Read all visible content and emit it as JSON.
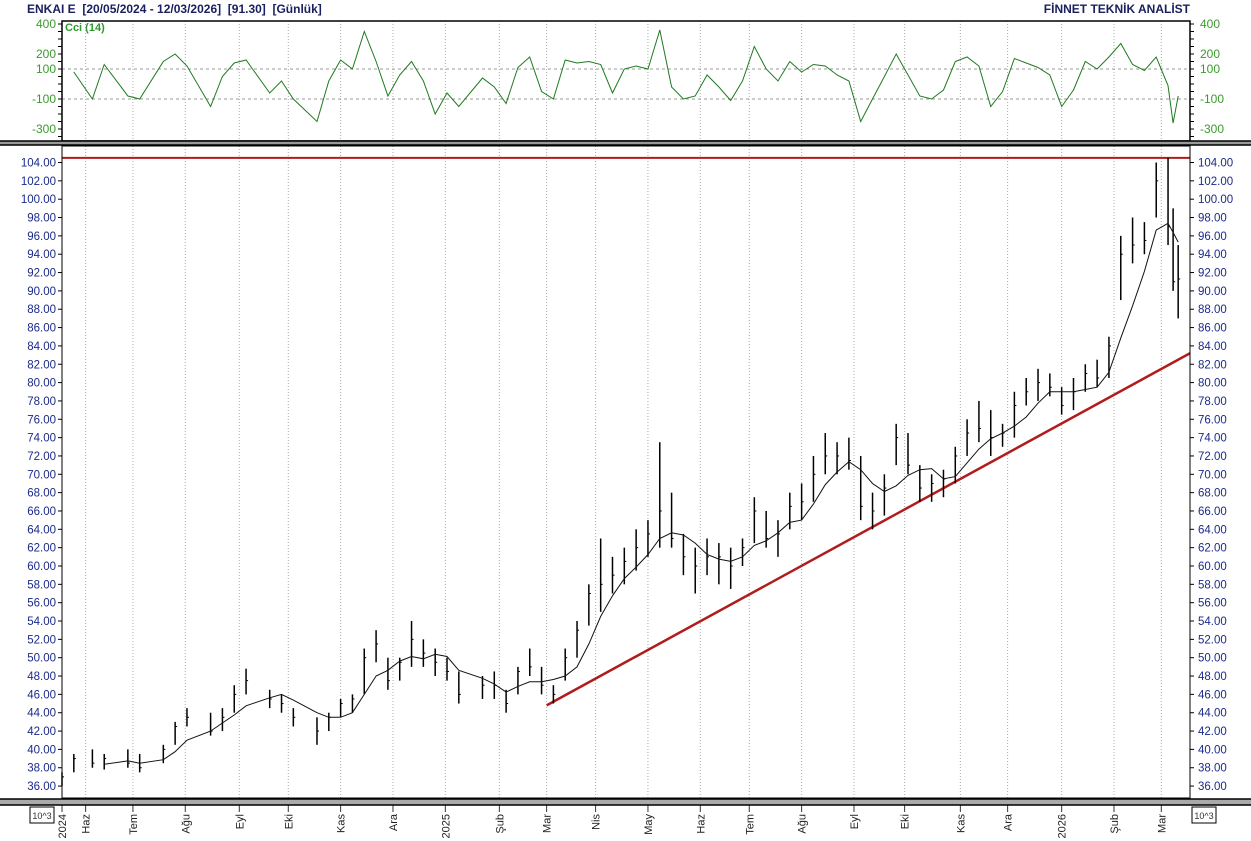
{
  "header": {
    "title": "ENKAI E  [20/05/2024 - 12/03/2026]  [91.30]  [Günlük]",
    "brand": "FİNNET TEKNİK ANALİST"
  },
  "colors": {
    "price": "#000000",
    "cci": "#1f7a1f",
    "lines": "#b01c1c",
    "price_axis": "#1a2a8a",
    "cci_axis": "#3c9a2e"
  },
  "chart_data": [
    {
      "type": "line",
      "name": "Cci (14)",
      "ylim": [
        -380,
        420
      ],
      "ticks": [
        400,
        200,
        100,
        -100,
        -300
      ],
      "reference_lines": [
        100,
        -100
      ],
      "grid": true
    },
    {
      "type": "ohlc",
      "ylim": [
        34.7,
        105.8
      ],
      "ticks_step": 2,
      "tick_min": 36,
      "tick_max": 104,
      "scale_label": "10^3",
      "moving_average": true,
      "horizontal_line": 104.5,
      "trendline": [
        [
          "2025-03-03",
          44.8
        ],
        [
          "2026-03-19",
          83.2
        ]
      ],
      "x_range": [
        "2024-05-20",
        "2026-03-19"
      ],
      "x_ticks": [
        [
          "2024-05-20",
          "2024"
        ],
        [
          "2024-06-03",
          "Haz"
        ],
        [
          "2024-07-01",
          "Tem"
        ],
        [
          "2024-08-01",
          "Ağu"
        ],
        [
          "2024-09-02",
          "Eyl"
        ],
        [
          "2024-10-01",
          "Eki"
        ],
        [
          "2024-11-01",
          "Kas"
        ],
        [
          "2024-12-02",
          "Ara"
        ],
        [
          "2025-01-02",
          "2025"
        ],
        [
          "2025-02-03",
          "Şub"
        ],
        [
          "2025-03-03",
          "Mar"
        ],
        [
          "2025-04-01",
          "Nis"
        ],
        [
          "2025-05-02",
          "May"
        ],
        [
          "2025-06-02",
          "Haz"
        ],
        [
          "2025-07-01",
          "Tem"
        ],
        [
          "2025-08-01",
          "Ağu"
        ],
        [
          "2025-09-01",
          "Eyl"
        ],
        [
          "2025-10-01",
          "Eki"
        ],
        [
          "2025-11-03",
          "Kas"
        ],
        [
          "2025-12-01",
          "Ara"
        ],
        [
          "2026-01-02",
          "2026"
        ],
        [
          "2026-02-02",
          "Şub"
        ],
        [
          "2026-03-02",
          "Mar"
        ]
      ],
      "columns": [
        "date",
        "high",
        "low",
        "close",
        "cci"
      ],
      "bars": [
        [
          "2024-05-20",
          37.5,
          36,
          37,
          0
        ],
        [
          "2024-05-27",
          39.5,
          37.5,
          39,
          80
        ],
        [
          "2024-06-07",
          40,
          38,
          38.5,
          -100
        ],
        [
          "2024-06-14",
          39.5,
          37.8,
          39,
          130
        ],
        [
          "2024-06-28",
          40,
          38,
          38.5,
          -80
        ],
        [
          "2024-07-05",
          39.5,
          37.5,
          38,
          -100
        ],
        [
          "2024-07-19",
          40.5,
          38.5,
          40,
          150
        ],
        [
          "2024-07-26",
          43,
          40.5,
          42.5,
          200
        ],
        [
          "2024-08-02",
          44.5,
          42.5,
          43.5,
          120
        ],
        [
          "2024-08-16",
          44,
          41.5,
          42,
          -150
        ],
        [
          "2024-08-23",
          44.5,
          42,
          43.5,
          50
        ],
        [
          "2024-08-30",
          47,
          44,
          46,
          140
        ],
        [
          "2024-09-06",
          48.8,
          46,
          47.5,
          160
        ],
        [
          "2024-09-20",
          46.5,
          44.5,
          45.5,
          -60
        ],
        [
          "2024-09-27",
          46,
          44,
          45,
          20
        ],
        [
          "2024-10-04",
          44.5,
          42.5,
          43.5,
          -100
        ],
        [
          "2024-10-18",
          43.5,
          40.5,
          42,
          -250
        ],
        [
          "2024-10-25",
          44,
          42,
          43.5,
          20
        ],
        [
          "2024-11-01",
          45.5,
          43.5,
          45,
          160
        ],
        [
          "2024-11-08",
          46,
          44,
          45.5,
          100
        ],
        [
          "2024-11-15",
          51,
          46,
          50,
          350
        ],
        [
          "2024-11-22",
          53,
          49.5,
          51.5,
          150
        ],
        [
          "2024-11-29",
          50,
          46.5,
          47.5,
          -80
        ],
        [
          "2024-12-06",
          50,
          47.5,
          49.5,
          60
        ],
        [
          "2024-12-13",
          54,
          49,
          52,
          150
        ],
        [
          "2024-12-20",
          52,
          49,
          50.5,
          20
        ],
        [
          "2024-12-27",
          51,
          48,
          49.5,
          -200
        ],
        [
          "2025-01-03",
          50,
          47.5,
          48.5,
          -60
        ],
        [
          "2025-01-10",
          48.5,
          45,
          46,
          -150
        ],
        [
          "2025-01-24",
          48,
          45.5,
          47,
          40
        ],
        [
          "2025-01-31",
          48.5,
          45.5,
          47,
          -20
        ],
        [
          "2025-02-07",
          46.5,
          44,
          45,
          -130
        ],
        [
          "2025-02-14",
          49,
          46,
          48.5,
          110
        ],
        [
          "2025-02-21",
          51,
          48,
          49,
          180
        ],
        [
          "2025-02-28",
          49,
          46,
          47,
          -50
        ],
        [
          "2025-03-07",
          47,
          45,
          46,
          -100
        ],
        [
          "2025-03-14",
          51,
          47.5,
          50,
          160
        ],
        [
          "2025-03-21",
          54,
          50,
          53,
          140
        ],
        [
          "2025-03-28",
          58,
          53.5,
          57,
          150
        ],
        [
          "2025-04-04",
          63,
          55,
          58,
          130
        ],
        [
          "2025-04-11",
          61,
          57,
          59,
          -60
        ],
        [
          "2025-04-18",
          62,
          58,
          60.5,
          100
        ],
        [
          "2025-04-25",
          64,
          59.5,
          62,
          120
        ],
        [
          "2025-05-02",
          65,
          61,
          63.5,
          100
        ],
        [
          "2025-05-09",
          73.5,
          62,
          66,
          360
        ],
        [
          "2025-05-16",
          68,
          62,
          63,
          -20
        ],
        [
          "2025-05-23",
          63.5,
          59,
          61,
          -100
        ],
        [
          "2025-05-30",
          62,
          57,
          60,
          -80
        ],
        [
          "2025-06-06",
          63,
          59,
          61,
          60
        ],
        [
          "2025-06-13",
          62.5,
          58,
          61,
          -20
        ],
        [
          "2025-06-20",
          62,
          57.5,
          60,
          -110
        ],
        [
          "2025-06-27",
          63,
          60,
          62,
          20
        ],
        [
          "2025-07-04",
          67.5,
          62.5,
          66,
          250
        ],
        [
          "2025-07-11",
          66,
          62,
          63,
          100
        ],
        [
          "2025-07-18",
          65,
          61,
          63.5,
          20
        ],
        [
          "2025-07-25",
          68,
          64,
          66.5,
          150
        ],
        [
          "2025-08-01",
          69,
          65,
          67,
          80
        ],
        [
          "2025-08-08",
          72,
          67,
          70,
          130
        ],
        [
          "2025-08-15",
          74.5,
          70,
          72,
          120
        ],
        [
          "2025-08-22",
          73.5,
          70,
          72,
          60
        ],
        [
          "2025-08-29",
          74,
          70.5,
          71.5,
          20
        ],
        [
          "2025-09-05",
          72,
          65,
          66.5,
          -250
        ],
        [
          "2025-09-12",
          68,
          64,
          66,
          -100
        ],
        [
          "2025-09-19",
          70,
          65.5,
          68.5,
          50
        ],
        [
          "2025-09-26",
          75.5,
          71,
          74,
          200
        ],
        [
          "2025-10-03",
          74.5,
          70,
          71,
          60
        ],
        [
          "2025-10-10",
          71,
          67,
          68.5,
          -80
        ],
        [
          "2025-10-17",
          70,
          67,
          69,
          -100
        ],
        [
          "2025-10-24",
          70.5,
          67.5,
          69.5,
          -40
        ],
        [
          "2025-10-31",
          73,
          69,
          72,
          150
        ],
        [
          "2025-11-07",
          76,
          72,
          74.5,
          180
        ],
        [
          "2025-11-14",
          78,
          73.5,
          75,
          120
        ],
        [
          "2025-11-21",
          77,
          72,
          74,
          -150
        ],
        [
          "2025-11-28",
          75.5,
          73,
          74.5,
          -50
        ],
        [
          "2025-12-05",
          79,
          74,
          77.5,
          170
        ],
        [
          "2025-12-12",
          80.5,
          77.5,
          79,
          140
        ],
        [
          "2025-12-19",
          81.5,
          78,
          80,
          110
        ],
        [
          "2025-12-26",
          81,
          78.5,
          79.5,
          60
        ],
        [
          "2026-01-02",
          79.5,
          76.5,
          77.5,
          -150
        ],
        [
          "2026-01-09",
          80.5,
          77,
          79,
          -40
        ],
        [
          "2026-01-16",
          82,
          79,
          81,
          150
        ],
        [
          "2026-01-23",
          82.5,
          79.5,
          80.5,
          100
        ],
        [
          "2026-01-30",
          85,
          80.5,
          84,
          180
        ],
        [
          "2026-02-06",
          96,
          89,
          94,
          270
        ],
        [
          "2026-02-13",
          98,
          93,
          95,
          130
        ],
        [
          "2026-02-20",
          97.5,
          94,
          95.5,
          90
        ],
        [
          "2026-02-27",
          104,
          98,
          102,
          180
        ],
        [
          "2026-03-06",
          104.5,
          95,
          97,
          -10
        ],
        [
          "2026-03-09",
          99,
          90,
          91,
          -260
        ],
        [
          "2026-03-12",
          95,
          87,
          91.3,
          -80
        ]
      ]
    }
  ]
}
